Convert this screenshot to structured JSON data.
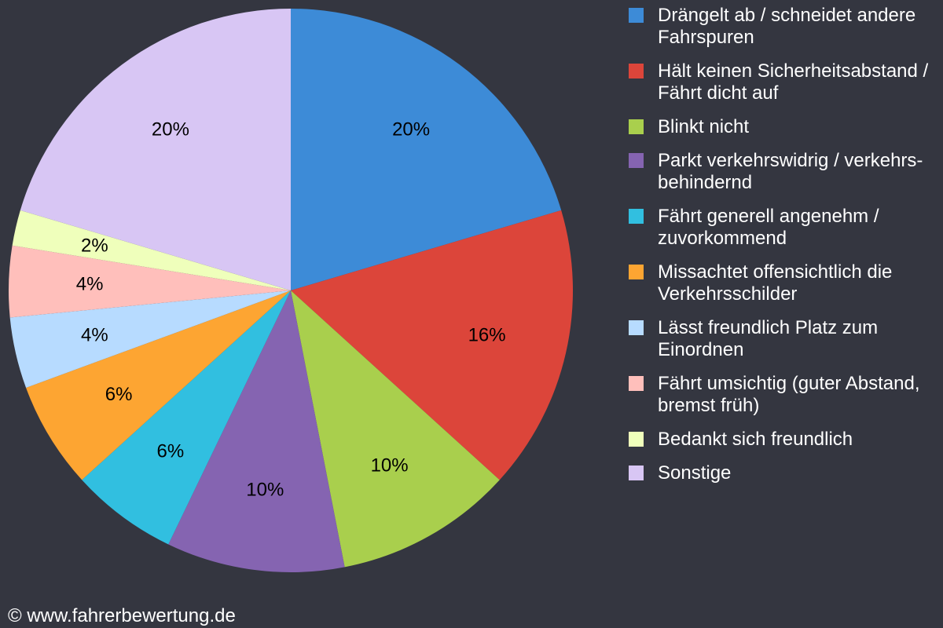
{
  "chart_data": {
    "type": "pie",
    "title": "",
    "slices": [
      {
        "label": "Drängelt ab / schneidet andere Fahrspuren",
        "value": 20,
        "value_label": "20%",
        "color": "#3d8bd7"
      },
      {
        "label": "Hält keinen Sicherheitsabstand / Fährt dicht auf",
        "value": 16,
        "value_label": "16%",
        "color": "#dc453a"
      },
      {
        "label": "Blinkt nicht",
        "value": 10,
        "value_label": "10%",
        "color": "#a9cf4d"
      },
      {
        "label": "Parkt verkehrswidrig / verkehrs-behindernd",
        "value": 10,
        "value_label": "10%",
        "color": "#8564b1"
      },
      {
        "label": "Fährt generell angenehm / zuvorkommend",
        "value": 6,
        "value_label": "6%",
        "color": "#31bfe0"
      },
      {
        "label": "Missachtet offensichtlich die Verkehrsschilder",
        "value": 6,
        "value_label": "6%",
        "color": "#fda532"
      },
      {
        "label": "Lässt freundlich Platz zum Einordnen",
        "value": 4,
        "value_label": "4%",
        "color": "#b7dbff"
      },
      {
        "label": "Fährt umsichtig (guter Abstand, bremst früh)",
        "value": 4,
        "value_label": "4%",
        "color": "#ffbfbb"
      },
      {
        "label": "Bedankt sich freundlich",
        "value": 2,
        "value_label": "2%",
        "color": "#efffbb"
      },
      {
        "label": "Sonstige",
        "value": 20,
        "value_label": "20%",
        "color": "#d8c6f4"
      }
    ],
    "start_angle": "12 o'clock",
    "direction": "clockwise",
    "legend_position": "right",
    "label_color": "#000000",
    "text_color": "#ffffff",
    "background": "#343640"
  },
  "footer": {
    "copyright": "© www.fahrerbewertung.de"
  }
}
